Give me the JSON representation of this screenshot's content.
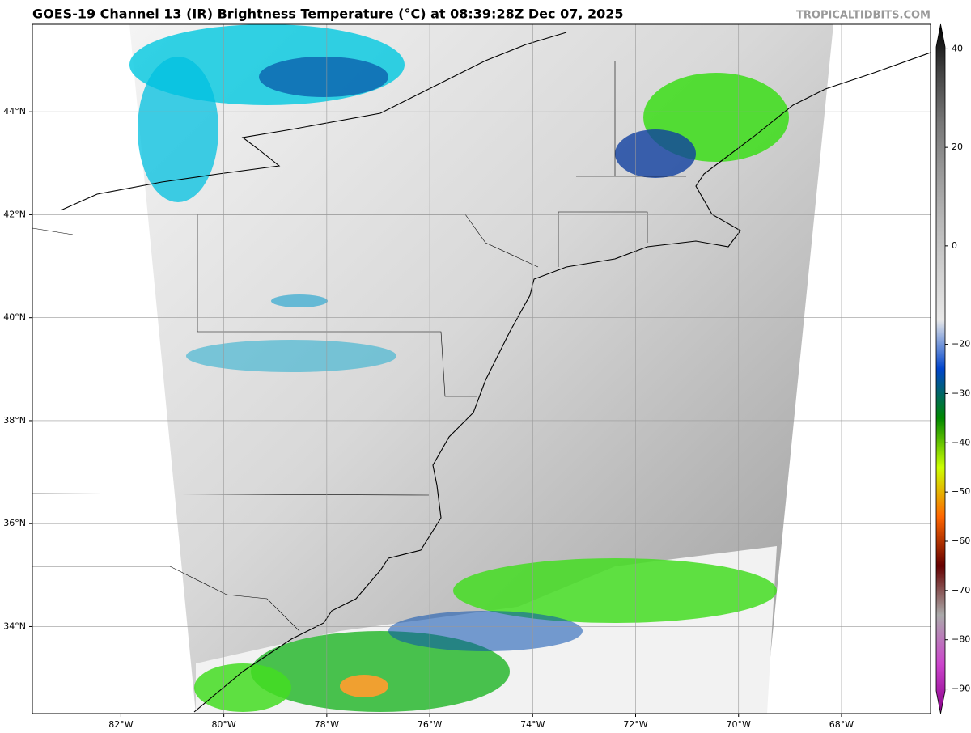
{
  "title": "GOES-19 Channel 13 (IR) Brightness Temperature (°C) at 08:39:28Z Dec 07, 2025",
  "watermark": "TROPICALTIDBITS.COM",
  "map": {
    "xlim": [
      -83.72,
      -66.27
    ],
    "ylim": [
      32.31,
      45.7
    ],
    "grid": true,
    "xticks": [
      {
        "value": -82,
        "label": "82°W"
      },
      {
        "value": -80,
        "label": "80°W"
      },
      {
        "value": -78,
        "label": "78°W"
      },
      {
        "value": -76,
        "label": "76°W"
      },
      {
        "value": -74,
        "label": "74°W"
      },
      {
        "value": -72,
        "label": "72°W"
      },
      {
        "value": -70,
        "label": "70°W"
      },
      {
        "value": -68,
        "label": "68°W"
      }
    ],
    "yticks": [
      {
        "value": 34,
        "label": "34°N"
      },
      {
        "value": 36,
        "label": "36°N"
      },
      {
        "value": 38,
        "label": "38°N"
      },
      {
        "value": 40,
        "label": "40°N"
      },
      {
        "value": 42,
        "label": "42°N"
      },
      {
        "value": 44,
        "label": "44°N"
      }
    ]
  },
  "colorbar": {
    "lim": [
      -95,
      45
    ],
    "colors": [
      "#880088",
      "#cc44cc",
      "#aaaaaa",
      "#660000",
      "#ff6600",
      "#ccff00",
      "#008800",
      "#0044cc",
      "#e8e8e8",
      "#d0d0d0",
      "#b8b8b8",
      "#999999",
      "#777777",
      "#444444",
      "#000000"
    ],
    "ticks": [
      {
        "value": -90,
        "label": "−90"
      },
      {
        "value": -80,
        "label": "−80"
      },
      {
        "value": -70,
        "label": "−70"
      },
      {
        "value": -60,
        "label": "−60"
      },
      {
        "value": -50,
        "label": "−50"
      },
      {
        "value": -40,
        "label": "−40"
      },
      {
        "value": -30,
        "label": "−30"
      },
      {
        "value": -20,
        "label": "−20"
      },
      0,
      20,
      40
    ]
  }
}
